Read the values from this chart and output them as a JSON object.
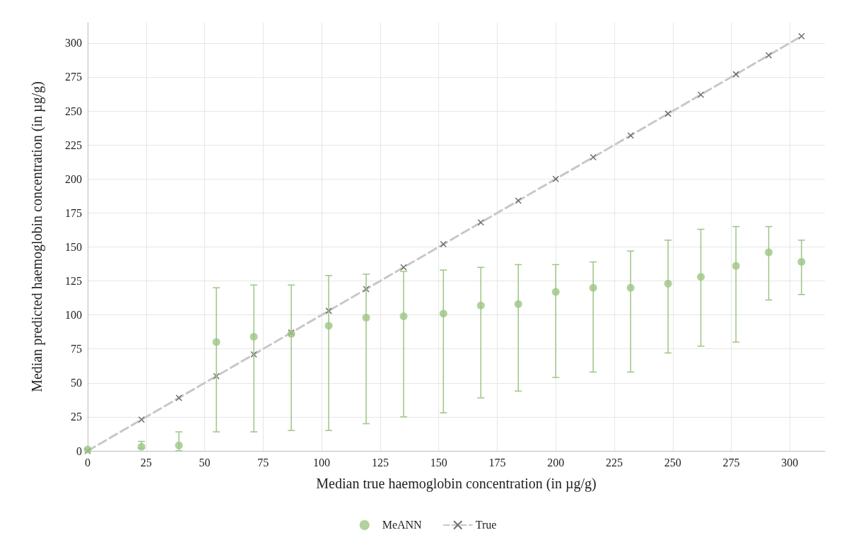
{
  "chart_data": {
    "type": "scatter",
    "xlabel": "Median true haemoglobin concentration (in µg/g)",
    "ylabel": "Median predicted haemoglobin concentration (in µg/g)",
    "xlim": [
      0,
      315
    ],
    "xticks": [
      0,
      25,
      50,
      75,
      100,
      125,
      150,
      175,
      200,
      225,
      250,
      275,
      300
    ],
    "ylim": [
      0,
      315
    ],
    "yticks": [
      0,
      25,
      50,
      75,
      100,
      125,
      150,
      175,
      200,
      225,
      250,
      275,
      300
    ],
    "grid": true,
    "legend": "bottom",
    "series": [
      {
        "name": "MeANN",
        "color": "#9dc584",
        "marker": "circle",
        "x": [
          0,
          23,
          39,
          55,
          71,
          87,
          103,
          119,
          135,
          152,
          168,
          184,
          200,
          216,
          232,
          248,
          262,
          277,
          291,
          305
        ],
        "values": [
          1,
          3,
          4,
          80,
          84,
          86,
          92,
          98,
          99,
          101,
          107,
          108,
          117,
          120,
          120,
          123,
          128,
          136,
          146,
          139
        ],
        "errors": [
          null,
          [
            2,
            7
          ],
          [
            0,
            14
          ],
          [
            14,
            120
          ],
          [
            14,
            122
          ],
          [
            15,
            122
          ],
          [
            15,
            129
          ],
          [
            20,
            130
          ],
          [
            25,
            132
          ],
          [
            28,
            133
          ],
          [
            39,
            135
          ],
          [
            44,
            137
          ],
          [
            54,
            137
          ],
          [
            58,
            139
          ],
          [
            58,
            147
          ],
          [
            72,
            155
          ],
          [
            77,
            163
          ],
          [
            80,
            165
          ],
          [
            111,
            165
          ],
          [
            115,
            155
          ]
        ]
      },
      {
        "name": "True",
        "type": "line",
        "color": "#c8c8c8",
        "marker": "cross",
        "line_style": "dashed",
        "x": [
          0,
          23,
          39,
          55,
          71,
          87,
          103,
          119,
          135,
          152,
          168,
          184,
          200,
          216,
          232,
          248,
          262,
          277,
          291,
          305
        ],
        "values": [
          0,
          23,
          39,
          55,
          71,
          87,
          103,
          119,
          135,
          152,
          168,
          184,
          200,
          216,
          232,
          248,
          262,
          277,
          291,
          305
        ]
      }
    ]
  }
}
